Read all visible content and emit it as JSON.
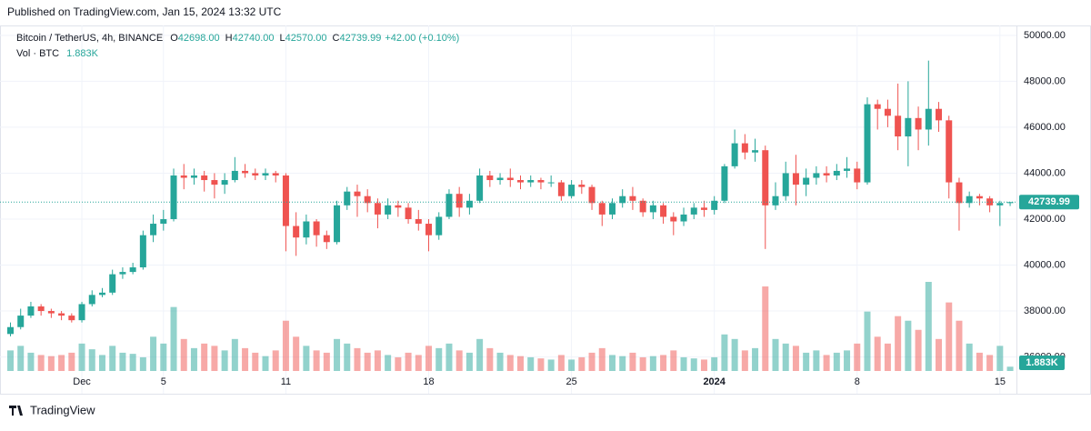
{
  "published": "Published on TradingView.com, Jan 15, 2024 13:32 UTC",
  "brand": "TradingView",
  "chart_data": {
    "type": "candlestick",
    "symbol": "Bitcoin / TetherUS, 4h, BINANCE",
    "ohlc_legend": [
      {
        "key": "O",
        "text": "42698.00"
      },
      {
        "key": "H",
        "text": "42740.00"
      },
      {
        "key": "L",
        "text": "42570.00"
      },
      {
        "key": "C",
        "text": "42739.99"
      }
    ],
    "change": "+42.00 (+0.10%)",
    "volume_key": "Vol · BTC",
    "volume_text": "1.883K",
    "up_color": "#26a69a",
    "down_color": "#ef5350",
    "categories": [
      null,
      null,
      null,
      null,
      null,
      null,
      null,
      "Dec",
      null,
      null,
      null,
      null,
      null,
      null,
      null,
      "5",
      null,
      null,
      null,
      null,
      null,
      null,
      null,
      null,
      null,
      null,
      null,
      "11",
      null,
      null,
      null,
      null,
      null,
      null,
      null,
      null,
      null,
      null,
      null,
      null,
      null,
      "18",
      null,
      null,
      null,
      null,
      null,
      null,
      null,
      null,
      null,
      null,
      null,
      null,
      null,
      "25",
      null,
      null,
      null,
      null,
      null,
      null,
      null,
      null,
      null,
      null,
      null,
      null,
      null,
      "2024",
      null,
      null,
      null,
      null,
      null,
      null,
      null,
      null,
      null,
      null,
      null,
      null,
      null,
      "8",
      null,
      null,
      null,
      null,
      null,
      null,
      null,
      null,
      null,
      null,
      null,
      null,
      null,
      "15",
      null
    ],
    "open": [
      37000,
      37300,
      37800,
      38200,
      38000,
      37900,
      37800,
      37600,
      38300,
      38700,
      38800,
      39600,
      39700,
      39900,
      41300,
      41800,
      42000,
      43900,
      43800,
      43900,
      43700,
      43500,
      43700,
      44100,
      44000,
      43900,
      44000,
      43900,
      41700,
      41200,
      41900,
      41300,
      41000,
      42600,
      43200,
      43000,
      42700,
      42200,
      42600,
      42500,
      42000,
      41800,
      41300,
      42100,
      43100,
      42500,
      42800,
      43900,
      43700,
      43800,
      43700,
      43600,
      43700,
      43600,
      43600,
      43000,
      43500,
      43400,
      42700,
      42200,
      42700,
      43000,
      42800,
      42300,
      42600,
      42100,
      41900,
      42200,
      42500,
      42400,
      42800,
      44300,
      45300,
      44900,
      45000,
      42600,
      43000,
      44000,
      43500,
      43800,
      44000,
      43900,
      44100,
      44200,
      43600,
      47000,
      46800,
      46500,
      45600,
      46400,
      45900,
      46800,
      46300,
      43600,
      42700,
      43000,
      42900,
      42600,
      42698
    ],
    "high": [
      37500,
      38100,
      38400,
      38300,
      38100,
      38000,
      37900,
      38400,
      38900,
      39000,
      39800,
      39900,
      40100,
      41500,
      42200,
      42400,
      44200,
      44400,
      44200,
      44100,
      44000,
      44000,
      44700,
      44400,
      44200,
      44200,
      44100,
      44000,
      42300,
      42200,
      42000,
      41500,
      42800,
      43400,
      43500,
      43300,
      42900,
      42900,
      42800,
      42700,
      42400,
      42000,
      42300,
      43300,
      43400,
      43100,
      44200,
      44100,
      44000,
      44200,
      43900,
      43900,
      43800,
      43900,
      43700,
      43700,
      43700,
      43500,
      42800,
      42900,
      43300,
      43400,
      42900,
      42800,
      42700,
      42300,
      42500,
      42700,
      42800,
      43000,
      44400,
      45900,
      45700,
      45500,
      45200,
      43600,
      44500,
      44800,
      44200,
      44300,
      44300,
      44400,
      44700,
      44500,
      47300,
      47200,
      47200,
      47900,
      48000,
      46900,
      48900,
      47100,
      46500,
      43800,
      43200,
      43100,
      43000,
      42800,
      42740
    ],
    "low": [
      36900,
      37200,
      37700,
      37800,
      37700,
      37600,
      37500,
      37500,
      38200,
      38600,
      38700,
      39400,
      39600,
      39800,
      41000,
      41500,
      41900,
      43300,
      43500,
      43200,
      42900,
      43100,
      43600,
      43800,
      43700,
      43700,
      43600,
      40600,
      40400,
      40900,
      40800,
      40700,
      40900,
      42400,
      42100,
      42300,
      41600,
      42000,
      42100,
      41800,
      41500,
      40600,
      41100,
      42000,
      42100,
      42200,
      42700,
      43400,
      43500,
      43400,
      43300,
      43400,
      43300,
      43400,
      42800,
      42900,
      43100,
      42400,
      41700,
      42000,
      42500,
      42400,
      42100,
      42000,
      41800,
      41300,
      41700,
      42000,
      42100,
      42200,
      42700,
      44200,
      44600,
      44500,
      40700,
      42400,
      42800,
      42600,
      43000,
      43500,
      43600,
      43700,
      43800,
      43300,
      43500,
      45900,
      46000,
      45000,
      44300,
      45000,
      45200,
      45800,
      42900,
      41500,
      42500,
      42600,
      42300,
      41700,
      42570
    ],
    "close": [
      37300,
      37800,
      38200,
      38000,
      37900,
      37800,
      37600,
      38300,
      38700,
      38800,
      39600,
      39700,
      39900,
      41300,
      41800,
      42000,
      43900,
      43800,
      43900,
      43700,
      43500,
      43700,
      44100,
      44000,
      43900,
      44000,
      43900,
      41700,
      41200,
      41900,
      41300,
      41000,
      42600,
      43200,
      43000,
      42700,
      42200,
      42600,
      42500,
      42000,
      41800,
      41300,
      42100,
      43100,
      42500,
      42800,
      43900,
      43700,
      43800,
      43700,
      43600,
      43700,
      43600,
      43600,
      43000,
      43500,
      43400,
      42700,
      42200,
      42700,
      43000,
      42800,
      42300,
      42600,
      42100,
      41900,
      42200,
      42500,
      42400,
      42800,
      44300,
      45300,
      44900,
      45000,
      42600,
      43000,
      44000,
      43500,
      43800,
      44000,
      43900,
      44100,
      44200,
      43600,
      47000,
      46800,
      46500,
      45600,
      46400,
      45900,
      46800,
      46300,
      43600,
      42700,
      43000,
      42900,
      42600,
      42700,
      42739.99
    ],
    "volume": [
      9000,
      11000,
      8000,
      7000,
      6500,
      7000,
      8000,
      12000,
      9500,
      7000,
      11000,
      8000,
      7500,
      6000,
      15000,
      12000,
      28000,
      14000,
      10000,
      12000,
      11000,
      9000,
      14000,
      10000,
      8000,
      6500,
      9000,
      22000,
      15000,
      11000,
      9000,
      8000,
      14000,
      12000,
      10000,
      8000,
      9000,
      7000,
      6000,
      8000,
      7000,
      11000,
      10000,
      12000,
      9000,
      8000,
      14000,
      10000,
      8000,
      7000,
      6500,
      6000,
      5500,
      5000,
      7000,
      5000,
      6000,
      8000,
      10000,
      7000,
      6500,
      8000,
      6000,
      6500,
      7000,
      9000,
      6000,
      5500,
      5000,
      6000,
      16000,
      14000,
      9000,
      10000,
      37000,
      14000,
      12000,
      11000,
      8000,
      9000,
      7000,
      8000,
      9000,
      12000,
      26000,
      15000,
      12000,
      24000,
      22000,
      18000,
      39000,
      14000,
      30000,
      22000,
      12000,
      8000,
      7000,
      11000,
      1883
    ],
    "ylim": [
      34400,
      50430
    ],
    "yticks": [
      {
        "value": 36000,
        "label": "36000.00"
      },
      {
        "value": 38000,
        "label": "38000.00"
      },
      {
        "value": 40000,
        "label": "40000.00"
      },
      {
        "value": 42000,
        "label": "42000.00"
      },
      {
        "value": 44000,
        "label": "44000.00"
      },
      {
        "value": 46000,
        "label": "46000.00"
      },
      {
        "value": 48000,
        "label": "48000.00"
      },
      {
        "value": 50000,
        "label": "50000.00"
      }
    ],
    "grid": true
  }
}
